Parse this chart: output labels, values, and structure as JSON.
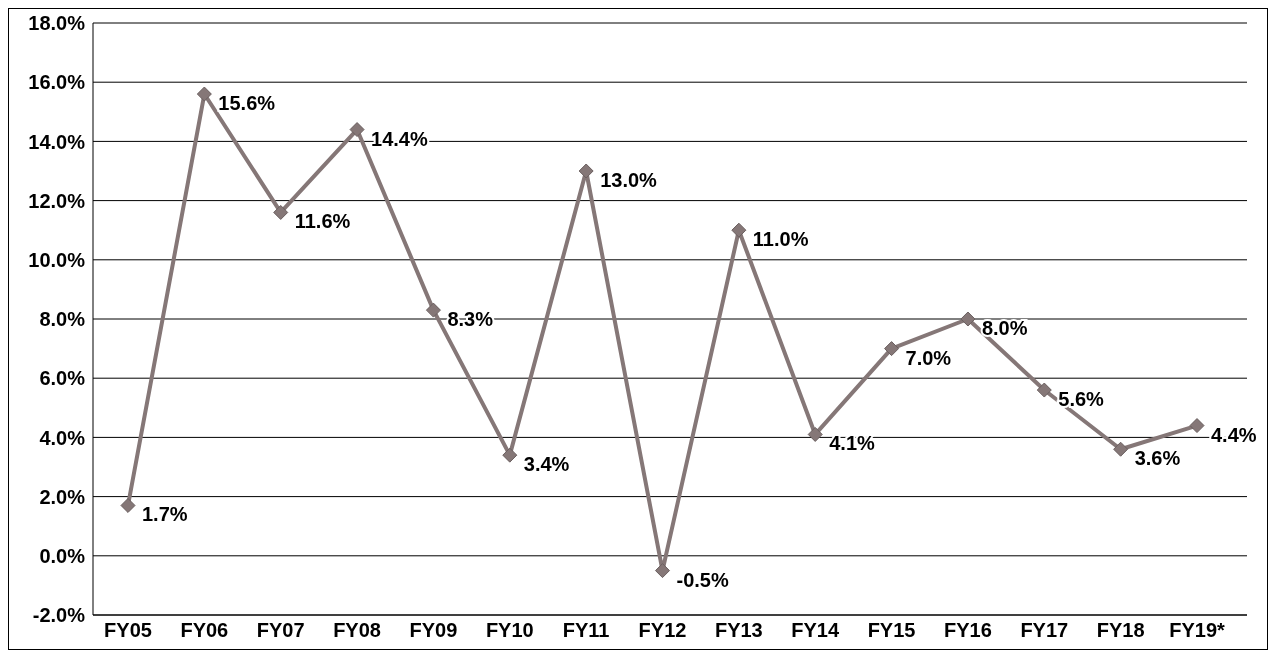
{
  "chart_data": {
    "type": "line",
    "categories": [
      "FY05",
      "FY06",
      "FY07",
      "FY08",
      "FY09",
      "FY10",
      "FY11",
      "FY12",
      "FY13",
      "FY14",
      "FY15",
      "FY16",
      "FY17",
      "FY18",
      "FY19*"
    ],
    "series": [
      {
        "color": "#857777",
        "values": [
          1.7,
          15.6,
          11.6,
          14.4,
          8.3,
          3.4,
          13.0,
          -0.5,
          11.0,
          4.1,
          7.0,
          8.0,
          5.6,
          3.6,
          4.4
        ],
        "value_labels": [
          "1.7%",
          "15.6%",
          "11.6%",
          "14.4%",
          "8.3%",
          "3.4%",
          "13.0%",
          "-0.5%",
          "11.0%",
          "4.1%",
          "7.0%",
          "8.0%",
          "5.6%",
          "3.6%",
          "4.4%"
        ]
      }
    ],
    "ylim": [
      -2,
      18
    ],
    "yticks": [
      {
        "value": -2,
        "label": "-2.0%"
      },
      {
        "value": 0,
        "label": "0.0%"
      },
      {
        "value": 2,
        "label": "2.0%"
      },
      {
        "value": 4,
        "label": "4.0%"
      },
      {
        "value": 6,
        "label": "6.0%"
      },
      {
        "value": 8,
        "label": "8.0%"
      },
      {
        "value": 10,
        "label": "10.0%"
      },
      {
        "value": 12,
        "label": "12.0%"
      },
      {
        "value": 14,
        "label": "14.0%"
      },
      {
        "value": 16,
        "label": "16.0%"
      },
      {
        "value": 18,
        "label": "18.0%"
      }
    ],
    "grid": "y",
    "legend": false,
    "marker": "diamond",
    "line_style": "solid"
  }
}
